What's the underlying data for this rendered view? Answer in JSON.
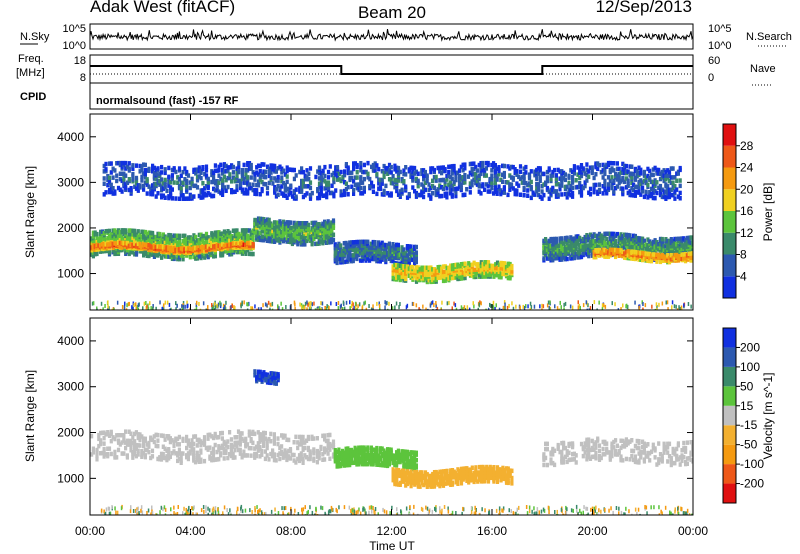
{
  "header": {
    "radar": "Adak West (fitACF)",
    "beam": "Beam 20",
    "date": "12/Sep/2013"
  },
  "noise_panel": {
    "left_label": "N.Sky",
    "right_label": "N.Search",
    "left_ticks": [
      "10^5",
      "10^0"
    ],
    "right_ticks": [
      "10^5",
      "10^0"
    ]
  },
  "freq_panel": {
    "left_label_1": "Freq.",
    "left_label_2": "[MHz]",
    "cpid_label": "CPID",
    "right_label": "Nave",
    "left_ticks": [
      "18",
      "8"
    ],
    "right_ticks": [
      "60",
      "0"
    ],
    "mode_text": "normalsound (fast) -157 RF",
    "freq_steps": [
      {
        "start_hour": 0,
        "end_hour": 10,
        "level": "high"
      },
      {
        "start_hour": 10,
        "end_hour": 18,
        "level": "low"
      },
      {
        "start_hour": 18,
        "end_hour": 24,
        "level": "high"
      }
    ]
  },
  "colors": {
    "power_scale": [
      "#1030e0",
      "#2c59b0",
      "#3a8a6a",
      "#5cc43c",
      "#f0d020",
      "#f59a10",
      "#ee5818",
      "#e01010"
    ],
    "velocity_scale": [
      "#e01010",
      "#ee5818",
      "#f59a10",
      "#f3b030",
      "#c0c0c0",
      "#5cc43c",
      "#3a8a6a",
      "#2c59b0",
      "#1030e0"
    ]
  },
  "chart_data": [
    {
      "type": "heatmap",
      "quantity": "Power",
      "ylabel": "Slant Range [km]",
      "colorbar_label": "Power [dB]",
      "colorbar_ticks": [
        "4",
        "8",
        "12",
        "16",
        "20",
        "24",
        "28"
      ],
      "x_range_hours": [
        0,
        24
      ],
      "ylim": [
        200,
        4500
      ],
      "y_ticks": [
        1000,
        2000,
        3000,
        4000
      ],
      "regions": [
        {
          "name": "evening-band-west",
          "t0": 0.0,
          "t1": 6.5,
          "r_center": 1700,
          "r_width": 550,
          "power": 18
        },
        {
          "name": "evening-band-core",
          "t0": 0.0,
          "t1": 6.5,
          "r_center": 1620,
          "r_width": 120,
          "power": 28
        },
        {
          "name": "evening-band-rising",
          "t0": 6.5,
          "t1": 9.7,
          "r_center": 2000,
          "r_width": 500,
          "power": 16
        },
        {
          "name": "midday-band",
          "t0": 9.7,
          "t1": 13.0,
          "r_center": 1500,
          "r_width": 450,
          "power": 12
        },
        {
          "name": "afternoon-blob",
          "t0": 12.0,
          "t1": 16.8,
          "r_center": 1100,
          "r_width": 350,
          "power": 22
        },
        {
          "name": "night-band",
          "t0": 18.0,
          "t1": 24.0,
          "r_center": 1650,
          "r_width": 500,
          "power": 14
        },
        {
          "name": "night-band-core",
          "t0": 20.0,
          "t1": 24.0,
          "r_center": 1450,
          "r_width": 180,
          "power": 26
        },
        {
          "name": "far-range-scatter",
          "t0": 0.5,
          "t1": 23.5,
          "r_center": 3100,
          "r_width": 700,
          "power": 10
        }
      ]
    },
    {
      "type": "heatmap",
      "quantity": "Velocity",
      "ylabel": "Slant Range [km]",
      "colorbar_label": "Velocity [m s^-1]",
      "colorbar_ticks": [
        "-200",
        "-100",
        "-50",
        "-15",
        "15",
        "50",
        "100",
        "200"
      ],
      "xlabel": "Time UT",
      "x_ticks": [
        "00:00",
        "04:00",
        "08:00",
        "12:00",
        "16:00",
        "20:00",
        "00:00"
      ],
      "x_range_hours": [
        0,
        24
      ],
      "ylim": [
        200,
        4500
      ],
      "y_ticks": [
        1000,
        2000,
        3000,
        4000
      ],
      "regions": [
        {
          "name": "ground-scatter-evening",
          "t0": 0.0,
          "t1": 9.7,
          "r_center": 1750,
          "r_width": 600,
          "velocity": 0
        },
        {
          "name": "midday-approach",
          "t0": 9.7,
          "t1": 13.0,
          "r_center": 1500,
          "r_width": 400,
          "velocity": 40
        },
        {
          "name": "afternoon-mixed",
          "t0": 12.0,
          "t1": 16.8,
          "r_center": 1100,
          "r_width": 350,
          "velocity": -40
        },
        {
          "name": "ground-scatter-night",
          "t0": 18.0,
          "t1": 24.0,
          "r_center": 1650,
          "r_width": 500,
          "velocity": 0
        },
        {
          "name": "far-range-blue",
          "t0": 6.5,
          "t1": 7.5,
          "r_center": 3250,
          "r_width": 250,
          "velocity": 200
        }
      ]
    }
  ]
}
